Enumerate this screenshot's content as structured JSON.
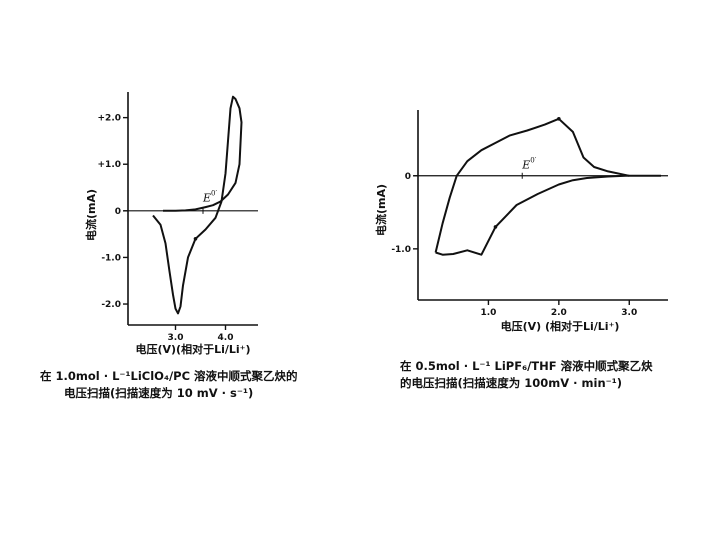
{
  "chart_data": [
    {
      "type": "line",
      "xlabel": "电压(V)(相对于Li/Li⁺)",
      "ylabel": "电流(mA)",
      "xticks": [
        "3.0",
        "4.0"
      ],
      "yticks": [
        "+2.0",
        "+1.0",
        "0",
        "-1.0",
        "-2.0"
      ],
      "annotation": {
        "text": "E",
        "sup": "0′",
        "x": 3.55,
        "y": 0.2
      },
      "xlim": [
        2.05,
        4.65
      ],
      "ylim": [
        -2.45,
        2.55
      ],
      "series": [
        {
          "x": [
            2.55,
            2.7,
            2.8,
            2.88,
            2.95,
            3.0,
            3.05,
            3.1,
            3.15,
            3.25,
            3.4,
            3.6,
            3.8,
            3.92,
            4.0,
            4.05,
            4.1,
            4.15,
            4.2,
            4.28,
            4.32,
            4.28,
            4.2,
            4.05,
            3.9,
            3.75,
            3.6,
            3.4,
            3.2,
            3.0,
            2.85,
            2.75
          ],
          "y": [
            -0.1,
            -0.3,
            -0.7,
            -1.3,
            -1.8,
            -2.1,
            -2.2,
            -2.05,
            -1.6,
            -1.0,
            -0.6,
            -0.4,
            -0.15,
            0.2,
            0.8,
            1.5,
            2.2,
            2.45,
            2.4,
            2.2,
            1.9,
            1.0,
            0.6,
            0.35,
            0.2,
            0.12,
            0.08,
            0.03,
            0.01,
            0.0,
            0.0,
            0.0
          ]
        }
      ]
    },
    {
      "type": "line",
      "xlabel": "电压(V)  (相对于Li/Li⁺)",
      "ylabel": "电流(mA)",
      "xticks": [
        "1.0",
        "2.0",
        "3.0"
      ],
      "yticks": [
        "0",
        "-1.0"
      ],
      "annotation": {
        "text": "E",
        "sup": "0′",
        "x": 1.48,
        "y": 0.1
      },
      "xlim": [
        0,
        3.55
      ],
      "ylim": [
        -1.7,
        0.9
      ],
      "series": [
        {
          "x": [
            0.25,
            0.35,
            0.5,
            0.7,
            0.9,
            1.1,
            1.4,
            1.7,
            2.0,
            2.2,
            2.4,
            2.7,
            2.95,
            3.2,
            3.45
          ],
          "y": [
            -1.05,
            -1.08,
            -1.07,
            -1.02,
            -1.08,
            -0.7,
            -0.4,
            -0.25,
            -0.12,
            -0.06,
            -0.03,
            -0.01,
            0.0,
            0.0,
            0.0
          ]
        },
        {
          "x": [
            3.0,
            2.7,
            2.5,
            2.35,
            2.2,
            2.0,
            1.8,
            1.55,
            1.3,
            1.1,
            0.9,
            0.7,
            0.55,
            0.45,
            0.35,
            0.25
          ],
          "y": [
            0.0,
            0.06,
            0.12,
            0.25,
            0.6,
            0.78,
            0.7,
            0.62,
            0.55,
            0.45,
            0.35,
            0.2,
            0.0,
            -0.3,
            -0.65,
            -1.05
          ]
        }
      ]
    }
  ],
  "captions": [
    {
      "line1": "在  1.0mol · L⁻¹LiClO₄/PC 溶液中顺式聚乙炔的",
      "line2": "电压扫描(扫描速度为  10 mV · s⁻¹)"
    },
    {
      "line1": "在  0.5mol · L⁻¹  LiPF₆/THF  溶液中顺式聚乙炔",
      "line2": "的电压扫描(扫描速度为  100mV · min⁻¹)"
    }
  ]
}
